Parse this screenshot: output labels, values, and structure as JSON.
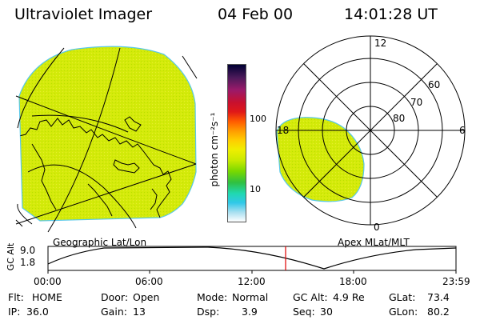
{
  "header": {
    "title": "Ultraviolet Imager",
    "date": "04 Feb 00",
    "time": "14:01:28 UT"
  },
  "geo_map": {
    "caption": "Geographic Lat/Lon",
    "fill_color": "#d4ea0a",
    "edge_color": "#58c8e8"
  },
  "colorbar": {
    "unit_label": "photon cm⁻²s⁻¹",
    "ticks": [
      "100",
      "10"
    ],
    "stops": [
      "#000033",
      "#4a1a5a",
      "#9a1a6a",
      "#c8102e",
      "#e01818",
      "#ff5a00",
      "#ff9a00",
      "#ffcc00",
      "#f0ee00",
      "#c8ea00",
      "#78d800",
      "#30c040",
      "#20d8b0",
      "#30c8e8",
      "#a8dff0",
      "#ffffff"
    ]
  },
  "polar_plot": {
    "caption": "Apex MLat/MLT",
    "mlt_labels": {
      "top": "12",
      "left": "18",
      "right": "6",
      "bottom": "0"
    },
    "lat_labels": [
      "60",
      "70",
      "80"
    ],
    "fill_color": "#d4ea0a",
    "edge_color": "#58c8e8"
  },
  "altitude_plot": {
    "axis_label": "GC Alt",
    "y_ticks": [
      "9.0",
      "1.8"
    ],
    "x_ticks": [
      "00:00",
      "06:00",
      "12:00",
      "18:00",
      "23:59"
    ],
    "current_time_marker": "14:01:28",
    "marker_color": "#e00000"
  },
  "status": {
    "flt_label": "Flt:",
    "flt_value": "HOME",
    "ip_label": "IP:",
    "ip_value": "36.0",
    "door_label": "Door:",
    "door_value": "Open",
    "gain_label": "Gain:",
    "gain_value": "13",
    "mode_label": "Mode:",
    "mode_value": "Normal",
    "dsp_label": "Dsp:",
    "dsp_value": "3.9",
    "gcalt_label": "GC Alt:",
    "gcalt_value": "4.9 Re",
    "seq_label": "Seq:",
    "seq_value": "30",
    "glat_label": "GLat:",
    "glat_value": "73.4",
    "glon_label": "GLon:",
    "glon_value": "80.2"
  }
}
